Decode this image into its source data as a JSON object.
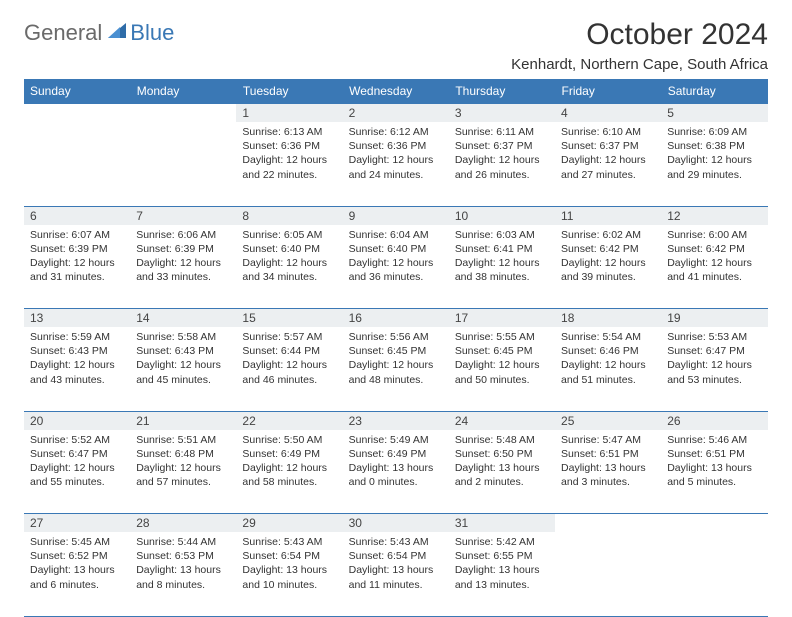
{
  "logo": {
    "text1": "General",
    "text2": "Blue"
  },
  "title": "October 2024",
  "location": "Kenhardt, Northern Cape, South Africa",
  "colors": {
    "header_bg": "#3a78b5",
    "header_text": "#ffffff",
    "daynum_bg": "#eceff1",
    "border": "#3a78b5",
    "logo_gray": "#6a6a6a",
    "logo_blue": "#3a78b5"
  },
  "day_headers": [
    "Sunday",
    "Monday",
    "Tuesday",
    "Wednesday",
    "Thursday",
    "Friday",
    "Saturday"
  ],
  "weeks": [
    {
      "nums": [
        "",
        "",
        "1",
        "2",
        "3",
        "4",
        "5"
      ],
      "cells": [
        null,
        null,
        {
          "sunrise": "Sunrise: 6:13 AM",
          "sunset": "Sunset: 6:36 PM",
          "daylight": "Daylight: 12 hours and 22 minutes."
        },
        {
          "sunrise": "Sunrise: 6:12 AM",
          "sunset": "Sunset: 6:36 PM",
          "daylight": "Daylight: 12 hours and 24 minutes."
        },
        {
          "sunrise": "Sunrise: 6:11 AM",
          "sunset": "Sunset: 6:37 PM",
          "daylight": "Daylight: 12 hours and 26 minutes."
        },
        {
          "sunrise": "Sunrise: 6:10 AM",
          "sunset": "Sunset: 6:37 PM",
          "daylight": "Daylight: 12 hours and 27 minutes."
        },
        {
          "sunrise": "Sunrise: 6:09 AM",
          "sunset": "Sunset: 6:38 PM",
          "daylight": "Daylight: 12 hours and 29 minutes."
        }
      ]
    },
    {
      "nums": [
        "6",
        "7",
        "8",
        "9",
        "10",
        "11",
        "12"
      ],
      "cells": [
        {
          "sunrise": "Sunrise: 6:07 AM",
          "sunset": "Sunset: 6:39 PM",
          "daylight": "Daylight: 12 hours and 31 minutes."
        },
        {
          "sunrise": "Sunrise: 6:06 AM",
          "sunset": "Sunset: 6:39 PM",
          "daylight": "Daylight: 12 hours and 33 minutes."
        },
        {
          "sunrise": "Sunrise: 6:05 AM",
          "sunset": "Sunset: 6:40 PM",
          "daylight": "Daylight: 12 hours and 34 minutes."
        },
        {
          "sunrise": "Sunrise: 6:04 AM",
          "sunset": "Sunset: 6:40 PM",
          "daylight": "Daylight: 12 hours and 36 minutes."
        },
        {
          "sunrise": "Sunrise: 6:03 AM",
          "sunset": "Sunset: 6:41 PM",
          "daylight": "Daylight: 12 hours and 38 minutes."
        },
        {
          "sunrise": "Sunrise: 6:02 AM",
          "sunset": "Sunset: 6:42 PM",
          "daylight": "Daylight: 12 hours and 39 minutes."
        },
        {
          "sunrise": "Sunrise: 6:00 AM",
          "sunset": "Sunset: 6:42 PM",
          "daylight": "Daylight: 12 hours and 41 minutes."
        }
      ]
    },
    {
      "nums": [
        "13",
        "14",
        "15",
        "16",
        "17",
        "18",
        "19"
      ],
      "cells": [
        {
          "sunrise": "Sunrise: 5:59 AM",
          "sunset": "Sunset: 6:43 PM",
          "daylight": "Daylight: 12 hours and 43 minutes."
        },
        {
          "sunrise": "Sunrise: 5:58 AM",
          "sunset": "Sunset: 6:43 PM",
          "daylight": "Daylight: 12 hours and 45 minutes."
        },
        {
          "sunrise": "Sunrise: 5:57 AM",
          "sunset": "Sunset: 6:44 PM",
          "daylight": "Daylight: 12 hours and 46 minutes."
        },
        {
          "sunrise": "Sunrise: 5:56 AM",
          "sunset": "Sunset: 6:45 PM",
          "daylight": "Daylight: 12 hours and 48 minutes."
        },
        {
          "sunrise": "Sunrise: 5:55 AM",
          "sunset": "Sunset: 6:45 PM",
          "daylight": "Daylight: 12 hours and 50 minutes."
        },
        {
          "sunrise": "Sunrise: 5:54 AM",
          "sunset": "Sunset: 6:46 PM",
          "daylight": "Daylight: 12 hours and 51 minutes."
        },
        {
          "sunrise": "Sunrise: 5:53 AM",
          "sunset": "Sunset: 6:47 PM",
          "daylight": "Daylight: 12 hours and 53 minutes."
        }
      ]
    },
    {
      "nums": [
        "20",
        "21",
        "22",
        "23",
        "24",
        "25",
        "26"
      ],
      "cells": [
        {
          "sunrise": "Sunrise: 5:52 AM",
          "sunset": "Sunset: 6:47 PM",
          "daylight": "Daylight: 12 hours and 55 minutes."
        },
        {
          "sunrise": "Sunrise: 5:51 AM",
          "sunset": "Sunset: 6:48 PM",
          "daylight": "Daylight: 12 hours and 57 minutes."
        },
        {
          "sunrise": "Sunrise: 5:50 AM",
          "sunset": "Sunset: 6:49 PM",
          "daylight": "Daylight: 12 hours and 58 minutes."
        },
        {
          "sunrise": "Sunrise: 5:49 AM",
          "sunset": "Sunset: 6:49 PM",
          "daylight": "Daylight: 13 hours and 0 minutes."
        },
        {
          "sunrise": "Sunrise: 5:48 AM",
          "sunset": "Sunset: 6:50 PM",
          "daylight": "Daylight: 13 hours and 2 minutes."
        },
        {
          "sunrise": "Sunrise: 5:47 AM",
          "sunset": "Sunset: 6:51 PM",
          "daylight": "Daylight: 13 hours and 3 minutes."
        },
        {
          "sunrise": "Sunrise: 5:46 AM",
          "sunset": "Sunset: 6:51 PM",
          "daylight": "Daylight: 13 hours and 5 minutes."
        }
      ]
    },
    {
      "nums": [
        "27",
        "28",
        "29",
        "30",
        "31",
        "",
        ""
      ],
      "cells": [
        {
          "sunrise": "Sunrise: 5:45 AM",
          "sunset": "Sunset: 6:52 PM",
          "daylight": "Daylight: 13 hours and 6 minutes."
        },
        {
          "sunrise": "Sunrise: 5:44 AM",
          "sunset": "Sunset: 6:53 PM",
          "daylight": "Daylight: 13 hours and 8 minutes."
        },
        {
          "sunrise": "Sunrise: 5:43 AM",
          "sunset": "Sunset: 6:54 PM",
          "daylight": "Daylight: 13 hours and 10 minutes."
        },
        {
          "sunrise": "Sunrise: 5:43 AM",
          "sunset": "Sunset: 6:54 PM",
          "daylight": "Daylight: 13 hours and 11 minutes."
        },
        {
          "sunrise": "Sunrise: 5:42 AM",
          "sunset": "Sunset: 6:55 PM",
          "daylight": "Daylight: 13 hours and 13 minutes."
        },
        null,
        null
      ]
    }
  ]
}
